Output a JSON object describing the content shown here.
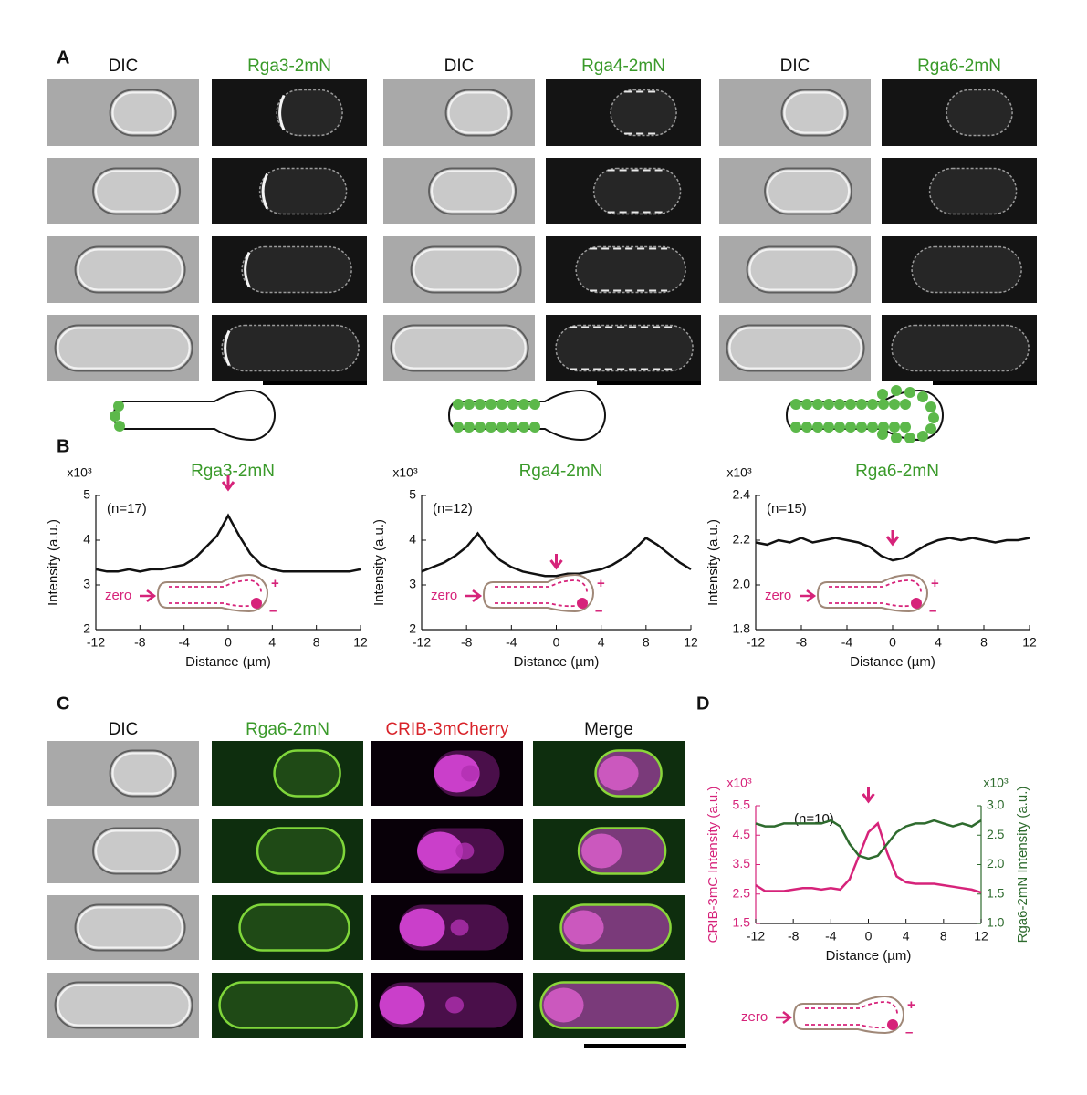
{
  "panels": {
    "a": {
      "label": "A",
      "groups": [
        [
          "DIC",
          "Rga3-2mN"
        ],
        [
          "DIC",
          "Rga4-2mN"
        ],
        [
          "DIC",
          "Rga6-2mN"
        ]
      ]
    },
    "b": {
      "label": "B"
    },
    "c": {
      "label": "C",
      "headers": [
        "DIC",
        "Rga6-2mN",
        "CRIB-3mCherry",
        "Merge"
      ]
    },
    "d": {
      "label": "D",
      "schematic": [
        "zero",
        "+",
        "–"
      ]
    }
  },
  "chart_data": [
    {
      "type": "line",
      "title": "Rga3-2mN",
      "multiplier": "x10³",
      "annotation": "(n=17)",
      "schematic": [
        "zero",
        "+",
        "–"
      ],
      "xlabel": "Distance (µm)",
      "ylabel": "Intensity (a.u.)",
      "x": [
        -12,
        -11,
        -10,
        -9,
        -8,
        -7,
        -6,
        -5,
        -4,
        -3,
        -2,
        -1,
        0,
        1,
        2,
        3,
        4,
        5,
        6,
        7,
        8,
        9,
        10,
        11,
        12
      ],
      "series": [
        {
          "color": "#111111",
          "values": [
            3.35,
            3.3,
            3.3,
            3.35,
            3.3,
            3.35,
            3.35,
            3.4,
            3.45,
            3.6,
            3.85,
            4.1,
            4.55,
            4.1,
            3.7,
            3.45,
            3.35,
            3.3,
            3.3,
            3.3,
            3.3,
            3.3,
            3.3,
            3.3,
            3.35
          ]
        }
      ],
      "xlim": [
        -12,
        12
      ],
      "xticks": [
        -12,
        -8,
        -4,
        0,
        4,
        8,
        12
      ],
      "ylim": [
        2,
        5
      ],
      "yticks": [
        2,
        3,
        4,
        5
      ]
    },
    {
      "type": "line",
      "title": "Rga4-2mN",
      "multiplier": "x10³",
      "annotation": "(n=12)",
      "schematic": [
        "zero",
        "+",
        "–"
      ],
      "xlabel": "Distance (µm)",
      "ylabel": "Intensity (a.u.)",
      "x": [
        -12,
        -11,
        -10,
        -9,
        -8,
        -7,
        -6,
        -5,
        -4,
        -3,
        -2,
        -1,
        0,
        1,
        2,
        3,
        4,
        5,
        6,
        7,
        8,
        9,
        10,
        11,
        12
      ],
      "series": [
        {
          "color": "#111111",
          "values": [
            3.3,
            3.4,
            3.5,
            3.65,
            3.85,
            4.15,
            3.8,
            3.55,
            3.4,
            3.3,
            3.25,
            3.2,
            3.2,
            3.25,
            3.25,
            3.3,
            3.35,
            3.45,
            3.6,
            3.8,
            4.05,
            3.9,
            3.7,
            3.5,
            3.35
          ]
        }
      ],
      "xlim": [
        -12,
        12
      ],
      "xticks": [
        -12,
        -8,
        -4,
        0,
        4,
        8,
        12
      ],
      "ylim": [
        2,
        5
      ],
      "yticks": [
        2,
        3,
        4,
        5
      ]
    },
    {
      "type": "line",
      "title": "Rga6-2mN",
      "multiplier": "x10³",
      "annotation": "(n=15)",
      "schematic": [
        "zero",
        "+",
        "–"
      ],
      "xlabel": "Distance (µm)",
      "ylabel": "Intensity (a.u.)",
      "x": [
        -12,
        -11,
        -10,
        -9,
        -8,
        -7,
        -6,
        -5,
        -4,
        -3,
        -2,
        -1,
        0,
        1,
        2,
        3,
        4,
        5,
        6,
        7,
        8,
        9,
        10,
        11,
        12
      ],
      "series": [
        {
          "color": "#111111",
          "values": [
            2.19,
            2.18,
            2.2,
            2.19,
            2.21,
            2.19,
            2.2,
            2.21,
            2.2,
            2.19,
            2.17,
            2.13,
            2.11,
            2.12,
            2.15,
            2.18,
            2.2,
            2.21,
            2.2,
            2.21,
            2.2,
            2.19,
            2.2,
            2.2,
            2.21
          ]
        }
      ],
      "xlim": [
        -12,
        12
      ],
      "xticks": [
        -12,
        -8,
        -4,
        0,
        4,
        8,
        12
      ],
      "ylim": [
        1.8,
        2.4
      ],
      "yticks": [
        1.8,
        {
          "value": 2,
          "label": "2.0"
        },
        2.2,
        2.4
      ]
    },
    {
      "type": "line",
      "multiplier": "x10³",
      "multiplier2": "x10³",
      "annotation": "(n=10)",
      "xlabel": "Distance (µm)",
      "ylabel": "CRIB-3mC Intensity (a.u.)",
      "y2label": "Rga6-2mN Intensity (a.u.)",
      "x": [
        -12,
        -11,
        -10,
        -9,
        -8,
        -7,
        -6,
        -5,
        -4,
        -3,
        -2,
        -1,
        0,
        1,
        2,
        3,
        4,
        5,
        6,
        7,
        8,
        9,
        10,
        11,
        12
      ],
      "series": [
        {
          "color": "#d6237a",
          "values": [
            2.8,
            2.6,
            2.6,
            2.6,
            2.65,
            2.7,
            2.7,
            2.65,
            2.7,
            2.65,
            3.0,
            3.8,
            4.6,
            4.9,
            3.9,
            3.1,
            2.9,
            2.85,
            2.85,
            2.85,
            2.8,
            2.75,
            2.7,
            2.65,
            2.55
          ]
        },
        {
          "color": "#2e6b2e",
          "axis": "y2",
          "values": [
            2.7,
            2.65,
            2.65,
            2.7,
            2.7,
            2.7,
            2.7,
            2.7,
            2.75,
            2.65,
            2.35,
            2.15,
            2.1,
            2.15,
            2.35,
            2.55,
            2.65,
            2.7,
            2.7,
            2.75,
            2.7,
            2.65,
            2.7,
            2.65,
            2.75
          ]
        }
      ],
      "xlim": [
        -12,
        12
      ],
      "xticks": [
        -12,
        -8,
        -4,
        0,
        4,
        8,
        12
      ],
      "ylim": [
        1.5,
        5.5
      ],
      "yticks": [
        1.5,
        2.5,
        3.5,
        4.5,
        5.5
      ],
      "y2lim": [
        1,
        3
      ],
      "y2ticks": [
        {
          "value": 1,
          "label": "1.0"
        },
        1.5,
        {
          "value": 2,
          "label": "2.0"
        },
        2.5,
        {
          "value": 3,
          "label": "3.0"
        }
      ]
    }
  ]
}
